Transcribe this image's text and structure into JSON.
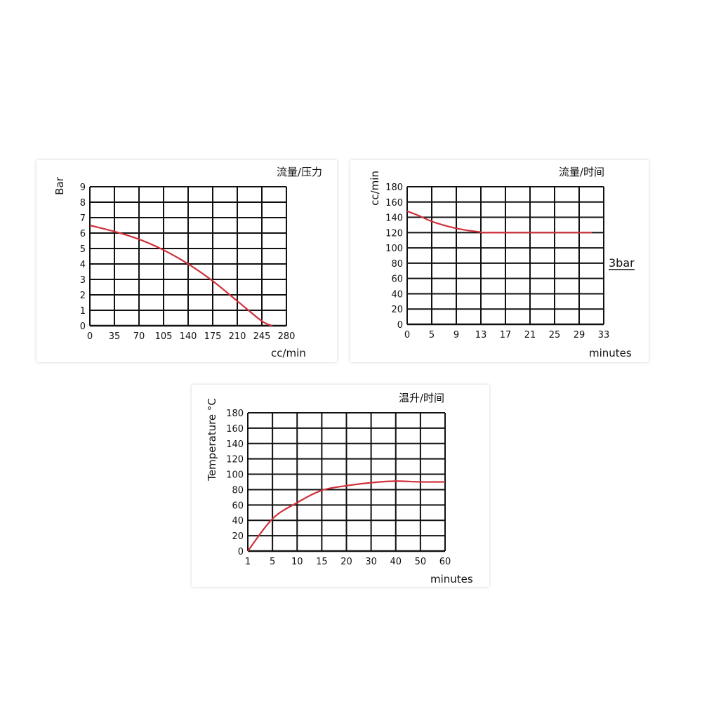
{
  "colors": {
    "curve": "#d0303a",
    "grid": "#111111",
    "text": "#111111"
  },
  "chart_data": [
    {
      "type": "line",
      "title": "流量/压力",
      "xlabel": "cc/min",
      "ylabel": "Bar",
      "x_ticks": [
        "0",
        "35",
        "70",
        "105",
        "140",
        "175",
        "210",
        "245",
        "280"
      ],
      "y_ticks": [
        "0",
        "1",
        "2",
        "3",
        "4",
        "5",
        "6",
        "7",
        "8",
        "9"
      ],
      "xlim": [
        0,
        280
      ],
      "ylim": [
        0,
        9
      ],
      "grid": true,
      "series": [
        {
          "x": [
            0,
            35,
            70,
            105,
            140,
            175,
            210,
            245,
            260
          ],
          "y": [
            6.5,
            6.1,
            5.6,
            4.9,
            4.0,
            2.9,
            1.6,
            0.3,
            0
          ]
        }
      ]
    },
    {
      "type": "line",
      "title": "流量/时间",
      "xlabel": "minutes",
      "ylabel": "cc/min",
      "x_ticks": [
        "0",
        "5",
        "9",
        "13",
        "17",
        "21",
        "25",
        "29",
        "33"
      ],
      "y_ticks": [
        "0",
        "20",
        "40",
        "60",
        "80",
        "100",
        "120",
        "140",
        "160",
        "180"
      ],
      "xlim": [
        0,
        33
      ],
      "ylim": [
        0,
        180
      ],
      "grid": true,
      "annotation": "3bar",
      "series": [
        {
          "x": [
            0,
            2,
            4,
            6,
            8,
            10,
            12,
            13,
            17,
            21,
            25,
            29,
            31
          ],
          "y": [
            148,
            142,
            135,
            130,
            126,
            123,
            121,
            120,
            120,
            120,
            120,
            120,
            120
          ]
        }
      ]
    },
    {
      "type": "line",
      "title": "温升/时间",
      "xlabel": "minutes",
      "ylabel": "Temperature °C",
      "x_ticks": [
        "1",
        "5",
        "10",
        "15",
        "20",
        "30",
        "40",
        "50",
        "60"
      ],
      "y_ticks": [
        "0",
        "20",
        "40",
        "60",
        "80",
        "100",
        "120",
        "140",
        "160",
        "180"
      ],
      "ylim": [
        0,
        180
      ],
      "grid": true,
      "series": [
        {
          "x": [
            "1",
            "5",
            "10",
            "15",
            "20",
            "30",
            "40",
            "50",
            "60"
          ],
          "y": [
            0,
            42,
            63,
            79,
            85,
            89,
            91,
            90,
            90
          ]
        }
      ]
    }
  ]
}
